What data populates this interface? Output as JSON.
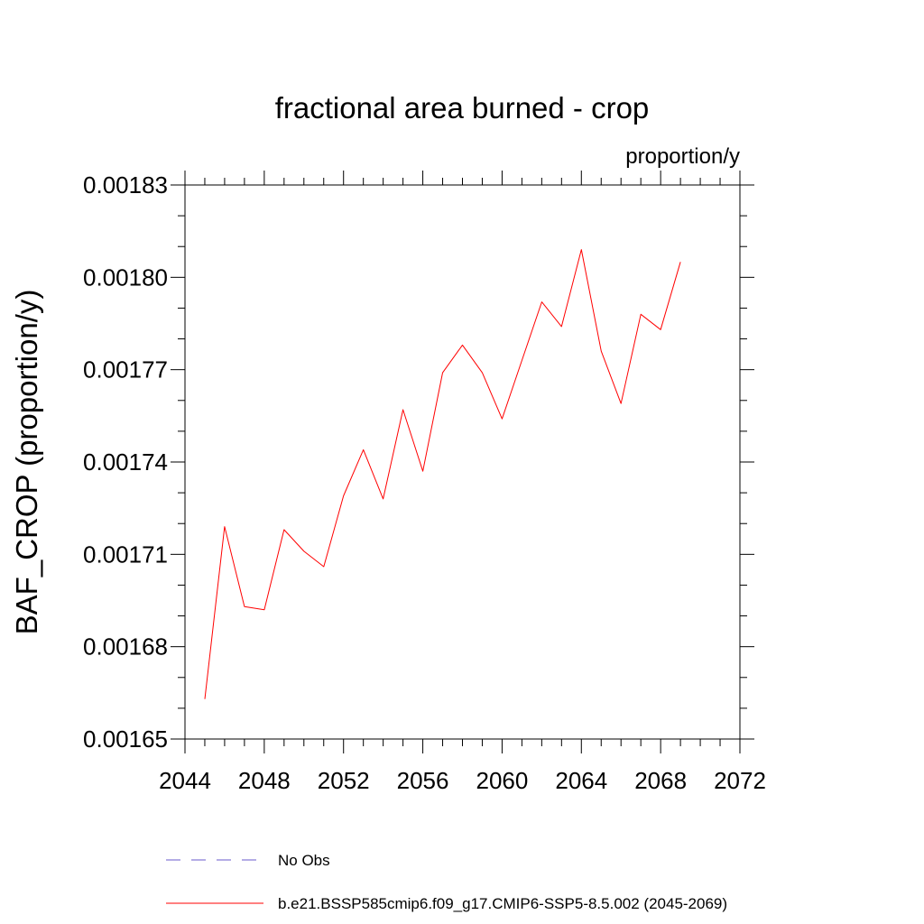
{
  "chart_data": {
    "type": "line",
    "title": "fractional area burned - crop",
    "units_label": "proportion/y",
    "ylabel": "BAF_CROP  (proportion/y)",
    "xlabel": "",
    "xlim": [
      2044,
      2072
    ],
    "ylim": [
      0.00165,
      0.00183
    ],
    "x_ticks": [
      2044,
      2048,
      2052,
      2056,
      2060,
      2064,
      2068,
      2072
    ],
    "x_tick_labels": [
      "2044",
      "2048",
      "2052",
      "2056",
      "2060",
      "2064",
      "2068",
      "2072"
    ],
    "y_ticks": [
      0.00165,
      0.00168,
      0.00171,
      0.00174,
      0.00177,
      0.0018,
      0.00183
    ],
    "y_tick_labels": [
      "0.00165",
      "0.00168",
      "0.00171",
      "0.00174",
      "0.00177",
      "0.00180",
      "0.00183"
    ],
    "grid": false,
    "legend_position": "bottom",
    "legend": [
      {
        "label": "No Obs",
        "color": "#6a5acd",
        "style": "dashed"
      },
      {
        "label": "b.e21.BSSP585cmip6.f09_g17.CMIP6-SSP5-8.5.002 (2045-2069)",
        "color": "#ff0000",
        "style": "solid"
      }
    ],
    "series": [
      {
        "name": "b.e21.BSSP585cmip6.f09_g17.CMIP6-SSP5-8.5.002 (2045-2069)",
        "color": "#ff0000",
        "x": [
          2045,
          2046,
          2047,
          2048,
          2049,
          2050,
          2051,
          2052,
          2053,
          2054,
          2055,
          2056,
          2057,
          2058,
          2059,
          2060,
          2061,
          2062,
          2063,
          2064,
          2065,
          2066,
          2067,
          2068,
          2069
        ],
        "values": [
          0.001663,
          0.001719,
          0.001693,
          0.001692,
          0.001718,
          0.001711,
          0.001706,
          0.001729,
          0.001744,
          0.001728,
          0.001757,
          0.001737,
          0.001769,
          0.001778,
          0.001769,
          0.001754,
          0.001773,
          0.001792,
          0.001784,
          0.001809,
          0.001776,
          0.001759,
          0.001788,
          0.001783,
          0.001805
        ]
      }
    ]
  }
}
